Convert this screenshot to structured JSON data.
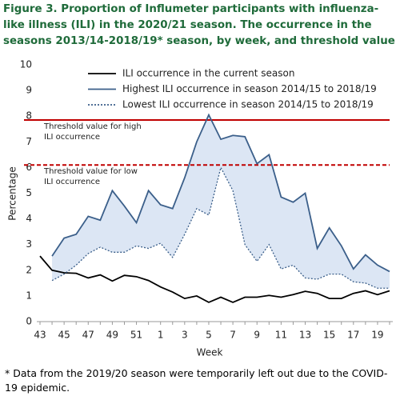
{
  "chart_data": {
    "type": "line",
    "title": "Figure 3. Proportion of Influmeter participants with influenza-like illness (ILI) in the 2020/21 season. The occurrence  in the seasons 2013/14-2018/19* season, by week, and threshold value",
    "x_label": "Week",
    "y_label": "Percentage",
    "footnote": "* Data from the 2019/20 season were temporarily left out due to the COVID-19 epidemic.",
    "categories": [
      "43",
      null,
      "45",
      null,
      "47",
      null,
      "49",
      null,
      "51",
      null,
      "1",
      null,
      "3",
      null,
      "5",
      null,
      "7",
      null,
      "9",
      null,
      "11",
      null,
      "13",
      null,
      "15",
      null,
      "17",
      null,
      "19",
      null
    ],
    "ylim": [
      0,
      10
    ],
    "yticks": [
      0,
      1,
      2,
      3,
      4,
      5,
      6,
      7,
      8,
      9,
      10
    ],
    "grid": false,
    "legend": true,
    "band_color": "#dce6f4",
    "series": [
      {
        "name": "ILI occurrence in the current season",
        "color": "#000000",
        "line_style": "solid",
        "values": [
          2.55,
          2.0,
          1.9,
          1.88,
          1.7,
          1.82,
          1.58,
          1.8,
          1.75,
          1.6,
          1.35,
          1.15,
          0.9,
          1.0,
          0.75,
          0.95,
          0.75,
          0.95,
          0.95,
          1.02,
          0.95,
          1.05,
          1.18,
          1.1,
          0.9,
          0.9,
          1.1,
          1.2,
          1.05,
          1.2
        ]
      },
      {
        "name": "Highest ILI occurrence in season 2014/15 to 2018/19",
        "color": "#3b5f8a",
        "line_style": "solid",
        "values": [
          null,
          2.55,
          3.25,
          3.4,
          4.1,
          3.95,
          5.1,
          4.5,
          3.85,
          5.1,
          4.55,
          4.4,
          5.6,
          7.0,
          8.05,
          7.1,
          7.25,
          7.2,
          6.15,
          6.5,
          4.85,
          4.65,
          5.0,
          2.85,
          3.65,
          2.95,
          2.05,
          2.6,
          2.2,
          1.95
        ]
      },
      {
        "name": "Lowest ILI occurrence in season 2014/15 to 2018/19",
        "color": "#3b5f8a",
        "line_style": "dotted",
        "values": [
          null,
          1.6,
          1.85,
          2.2,
          2.65,
          2.9,
          2.7,
          2.7,
          2.95,
          2.85,
          3.05,
          2.5,
          3.4,
          4.4,
          4.15,
          6.0,
          5.1,
          3.0,
          2.35,
          3.0,
          2.05,
          2.2,
          1.7,
          1.65,
          1.85,
          1.85,
          1.55,
          1.5,
          1.3,
          1.3
        ]
      }
    ],
    "thresholds": [
      {
        "label": [
          "Threshold value for high",
          "ILI occurrence"
        ],
        "value": 7.85,
        "color": "#c00000",
        "line_style": "solid"
      },
      {
        "label": [
          "Threshold value for low",
          "ILI occurrence"
        ],
        "value": 6.1,
        "color": "#c00000",
        "line_style": "dashed"
      }
    ]
  }
}
